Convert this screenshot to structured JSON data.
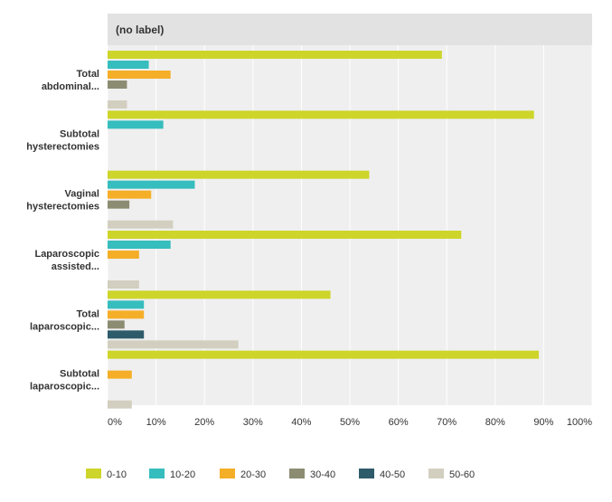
{
  "chart_data": {
    "type": "bar",
    "orientation": "horizontal",
    "header": "(no label)",
    "categories": [
      [
        "Total",
        "abdominal..."
      ],
      [
        "Subtotal",
        "hysterectomies"
      ],
      [
        "Vaginal",
        "hysterectomies"
      ],
      [
        "Laparoscopic",
        "assisted..."
      ],
      [
        "Total",
        "laparoscopic..."
      ],
      [
        "Subtotal",
        "laparoscopic..."
      ]
    ],
    "series": [
      {
        "name": "0-10",
        "color": "#cdd52a",
        "values": [
          69,
          88,
          54,
          73,
          46,
          89
        ]
      },
      {
        "name": "10-20",
        "color": "#36bdbd",
        "values": [
          8.5,
          11.5,
          18,
          13,
          7.5,
          0
        ]
      },
      {
        "name": "20-30",
        "color": "#f5ae27",
        "values": [
          13,
          0,
          9,
          6.5,
          7.5,
          5
        ]
      },
      {
        "name": "30-40",
        "color": "#8c8c73",
        "values": [
          4,
          0,
          4.5,
          0,
          3.5,
          0
        ]
      },
      {
        "name": "40-50",
        "color": "#2e5b6a",
        "values": [
          0,
          0,
          0,
          0,
          7.5,
          0
        ]
      },
      {
        "name": "50-60",
        "color": "#d2cfc0",
        "values": [
          4,
          0,
          13.5,
          6.5,
          27,
          5
        ]
      }
    ],
    "xlim": [
      0,
      100
    ],
    "x_ticks": [
      "0%",
      "10%",
      "20%",
      "30%",
      "40%",
      "50%",
      "60%",
      "70%",
      "80%",
      "90%",
      "100%"
    ],
    "grid": true,
    "legend_position": "bottom",
    "background_color": "#efefef",
    "header_color": "#e2e2e2"
  }
}
